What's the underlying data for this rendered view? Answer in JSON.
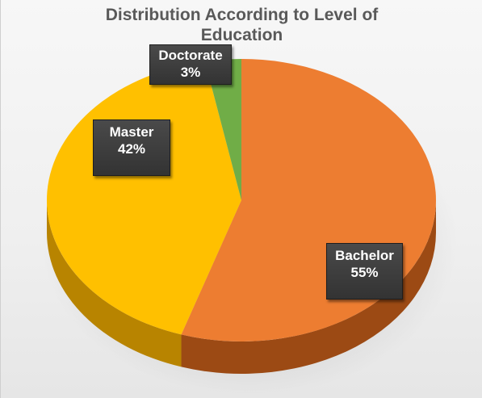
{
  "chart_data": {
    "type": "pie",
    "title_lines": [
      "Distribution According to Level of",
      "Education"
    ],
    "categories": [
      "Bachelor",
      "Master",
      "Doctorate"
    ],
    "values": [
      55,
      42,
      3
    ],
    "value_labels": [
      "55%",
      "42%",
      "3%"
    ],
    "colors": [
      "#ED7D31",
      "#FFC000",
      "#70AD47"
    ],
    "side_colors": [
      "#9C4A14",
      "#B88400",
      "#3E6B22"
    ],
    "style": "3d",
    "legend": "none",
    "data_labels": true
  }
}
